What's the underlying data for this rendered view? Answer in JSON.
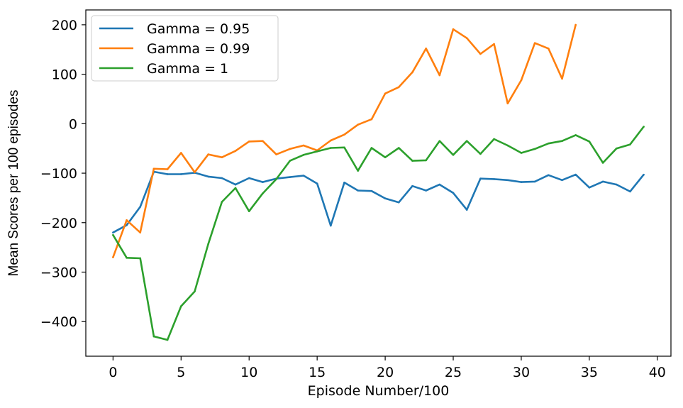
{
  "chart_data": {
    "type": "line",
    "title": "",
    "xlabel": "Episode Number/100",
    "ylabel": "Mean Scores per 100 episodes",
    "xlim": [
      -2,
      41
    ],
    "ylim": [
      -470,
      230
    ],
    "xticks": [
      0,
      5,
      10,
      15,
      20,
      25,
      30,
      35,
      40
    ],
    "yticks": [
      -400,
      -300,
      -200,
      -100,
      0,
      100,
      200
    ],
    "legend_position": "top-left",
    "grid": false,
    "series": [
      {
        "name": "Gamma = 0.95",
        "color": "#1f77b4",
        "x": [
          0,
          1,
          2,
          3,
          4,
          5,
          6,
          7,
          8,
          9,
          10,
          11,
          12,
          13,
          14,
          15,
          16,
          17,
          18,
          19,
          20,
          21,
          22,
          23,
          24,
          25,
          26,
          27,
          28,
          29,
          30,
          31,
          32,
          33,
          34,
          35,
          36,
          37,
          38,
          39
        ],
        "values": [
          -220,
          -205,
          -168,
          -97,
          -102,
          -102,
          -99,
          -107,
          -110,
          -123,
          -110,
          -118,
          -111,
          -108,
          -105,
          -121,
          -206,
          -119,
          -135,
          -136,
          -151,
          -159,
          -126,
          -135,
          -123,
          -140,
          -174,
          -111,
          -112,
          -114,
          -118,
          -117,
          -104,
          -114,
          -103,
          -129,
          -117,
          -123,
          -137,
          -103
        ]
      },
      {
        "name": "Gamma = 0.99",
        "color": "#ff7f0e",
        "x": [
          0,
          1,
          2,
          3,
          4,
          5,
          6,
          7,
          8,
          9,
          10,
          11,
          12,
          13,
          14,
          15,
          16,
          17,
          18,
          19,
          20,
          21,
          22,
          23,
          24,
          25,
          26,
          27,
          28,
          29,
          30,
          31,
          32,
          33,
          34
        ],
        "values": [
          -270,
          -195,
          -220,
          -91,
          -92,
          -59,
          -98,
          -62,
          -68,
          -55,
          -36,
          -35,
          -62,
          -51,
          -44,
          -54,
          -34,
          -22,
          -2,
          9,
          61,
          74,
          104,
          152,
          98,
          191,
          173,
          141,
          161,
          41,
          88,
          163,
          152,
          91,
          200
        ]
      },
      {
        "name": "Gamma = 1",
        "color": "#2ca02c",
        "x": [
          0,
          1,
          2,
          3,
          4,
          5,
          6,
          7,
          8,
          9,
          10,
          11,
          12,
          13,
          14,
          15,
          16,
          17,
          18,
          19,
          20,
          21,
          22,
          23,
          24,
          25,
          26,
          27,
          28,
          29,
          30,
          31,
          32,
          33,
          34,
          35,
          36,
          37,
          38,
          39
        ],
        "values": [
          -225,
          -271,
          -272,
          -430,
          -437,
          -369,
          -339,
          -243,
          -158,
          -130,
          -177,
          -141,
          -112,
          -75,
          -63,
          -56,
          -49,
          -48,
          -95,
          -49,
          -68,
          -49,
          -75,
          -74,
          -35,
          -63,
          -35,
          -61,
          -31,
          -44,
          -59,
          -51,
          -40,
          -35,
          -23,
          -36,
          -79,
          -50,
          -42,
          -6
        ]
      }
    ]
  }
}
